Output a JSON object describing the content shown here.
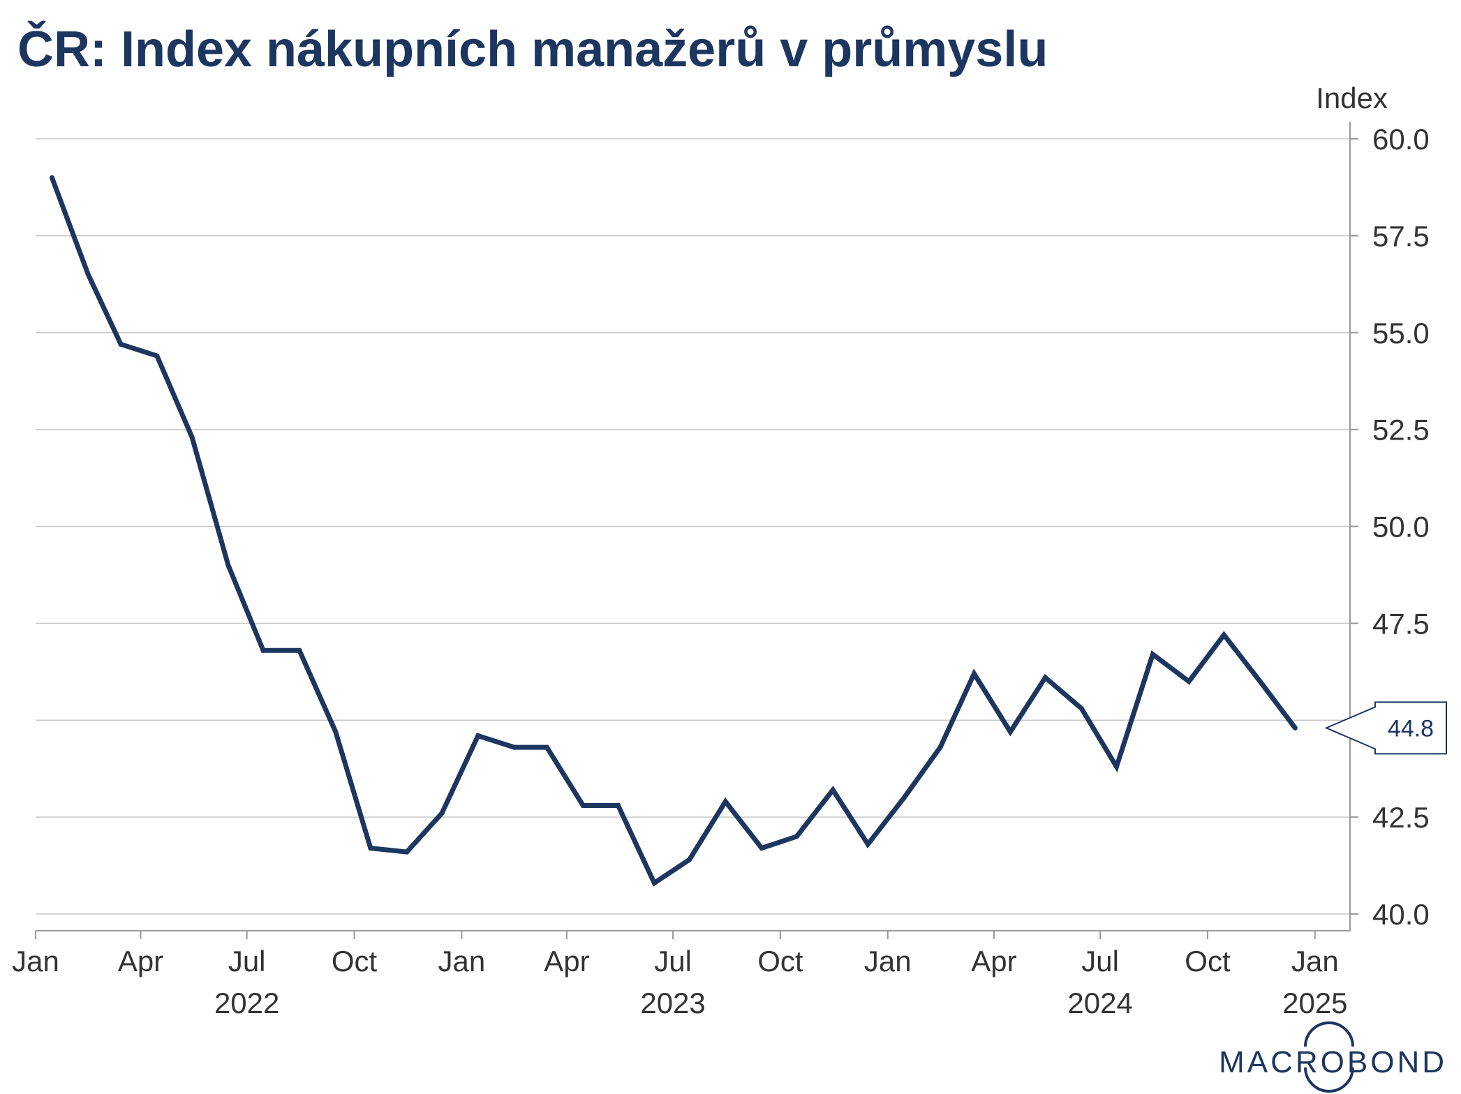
{
  "chart_data": {
    "type": "line",
    "title": "ČR: Index nákupních manažerů v průmyslu",
    "unit_label": "Index",
    "yaxis_side": "right",
    "ylim": [
      39.7,
      60.5
    ],
    "yticks": [
      40.0,
      42.5,
      45.0,
      47.5,
      50.0,
      52.5,
      55.0,
      57.5,
      60.0
    ],
    "ytick_labels": [
      "40.0",
      "42.5",
      "45.0",
      "47.5",
      "50.0",
      "52.5",
      "55.0",
      "57.5",
      "60.0"
    ],
    "grid": true,
    "xlim": [
      "2022-01-01",
      "2025-01-31"
    ],
    "x_month_ticks": [
      "2022-01-01",
      "2022-04-01",
      "2022-07-01",
      "2022-10-01",
      "2023-01-01",
      "2023-04-01",
      "2023-07-01",
      "2023-10-01",
      "2024-01-01",
      "2024-04-01",
      "2024-07-01",
      "2024-10-01",
      "2025-01-01"
    ],
    "x_month_labels": [
      "Jan",
      "Apr",
      "Jul",
      "Oct",
      "Jan",
      "Apr",
      "Jul",
      "Oct",
      "Jan",
      "Apr",
      "Jul",
      "Oct",
      "Jan"
    ],
    "x_year_positions": [
      "2022-07-01",
      "2023-07-01",
      "2024-07-01",
      "2025-01-01"
    ],
    "x_year_labels": [
      "2022",
      "2023",
      "2024",
      "2025"
    ],
    "series": [
      {
        "color": "#1c3660",
        "x": [
          "2022-01-15",
          "2022-02-15",
          "2022-03-15",
          "2022-04-15",
          "2022-05-15",
          "2022-06-15",
          "2022-07-15",
          "2022-08-15",
          "2022-09-15",
          "2022-10-15",
          "2022-11-15",
          "2022-12-15",
          "2023-01-15",
          "2023-02-15",
          "2023-03-15",
          "2023-04-15",
          "2023-05-15",
          "2023-06-15",
          "2023-07-15",
          "2023-08-15",
          "2023-09-15",
          "2023-10-15",
          "2023-11-15",
          "2023-12-15",
          "2024-01-15",
          "2024-02-15",
          "2024-03-15",
          "2024-04-15",
          "2024-05-15",
          "2024-06-15",
          "2024-07-15",
          "2024-08-15",
          "2024-09-15",
          "2024-10-15",
          "2024-11-15",
          "2024-12-15"
        ],
        "values": [
          59.0,
          56.5,
          54.7,
          54.4,
          52.3,
          49.0,
          46.8,
          46.8,
          44.7,
          41.7,
          41.6,
          42.6,
          44.6,
          44.3,
          44.3,
          42.8,
          42.8,
          40.8,
          41.4,
          42.9,
          41.7,
          42.0,
          43.2,
          41.8,
          43.0,
          44.3,
          46.2,
          44.7,
          46.1,
          45.3,
          43.8,
          46.7,
          46.0,
          47.2,
          46.0,
          44.8
        ]
      }
    ],
    "last_value_label": "44.8"
  },
  "colors": {
    "line": "#1c3660",
    "title": "#1c3660",
    "grid": "#c8c8c8",
    "axis": "#999999",
    "tick_text": "#333333"
  },
  "brand": {
    "text": "MACROBOND",
    "color": "#1c3660"
  }
}
